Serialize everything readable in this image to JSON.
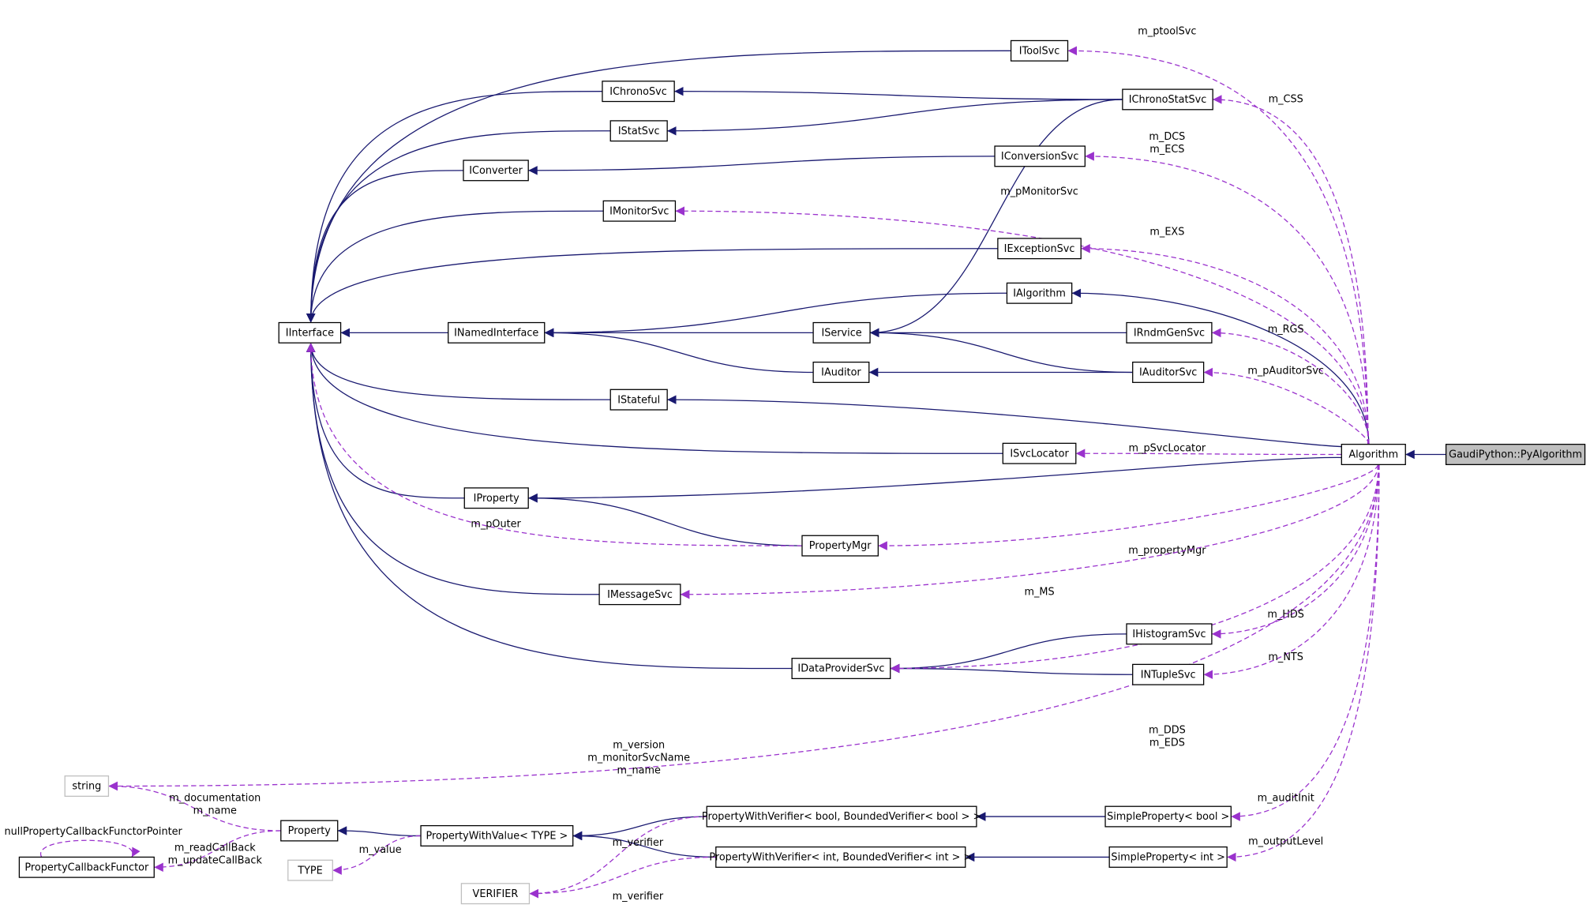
{
  "nodes": [
    "IToolSvc",
    "IChronoStatSvc",
    "IChronoSvc",
    "IStatSvc",
    "IConverter",
    "IConversionSvc",
    "IMonitorSvc",
    "IExceptionSvc",
    "IAlgorithm",
    "IInterface",
    "INamedInterface",
    "IService",
    "IRndmGenSvc",
    "IAuditor",
    "IAuditorSvc",
    "IStateful",
    "ISvcLocator",
    "Algorithm",
    "GaudiPython::PyAlgorithm",
    "IProperty",
    "PropertyMgr",
    "IMessageSvc",
    "IHistogramSvc",
    "IDataProviderSvc",
    "INTupleSvc",
    "string",
    "Property",
    "PropertyCallbackFunctor",
    "PropertyWithValue< TYPE >",
    "PropertyWithVerifier< bool, BoundedVerifier< bool > >",
    "SimpleProperty< bool >",
    "TYPE",
    "VERIFIER",
    "PropertyWithVerifier< int, BoundedVerifier< int > >",
    "SimpleProperty< int >"
  ],
  "edge_labels": [
    [
      "m_ptoolSvc"
    ],
    [
      "m_CSS"
    ],
    [
      "m_DCS",
      "m_ECS"
    ],
    [
      "m_pMonitorSvc"
    ],
    [
      "m_EXS"
    ],
    [
      "m_RGS"
    ],
    [
      "m_pAuditorSvc"
    ],
    [
      "m_pSvcLocator"
    ],
    [
      "m_propertyMgr"
    ],
    [
      "m_MS"
    ],
    [
      "m_HDS"
    ],
    [
      "m_NTS"
    ],
    [
      "m_DDS",
      "m_EDS"
    ],
    [
      "m_version",
      "m_monitorSvcName",
      "m_name"
    ],
    [
      "m_auditInit"
    ],
    [
      "m_outputLevel"
    ],
    [
      "m_pOuter"
    ],
    [
      "m_documentation",
      "m_name"
    ],
    [
      "m_readCallBack",
      "m_updateCallBack"
    ],
    [
      "nullPropertyCallbackFunctorPointer"
    ],
    [
      "m_value"
    ],
    [
      "m_verifier"
    ],
    [
      "m_verifier"
    ]
  ]
}
